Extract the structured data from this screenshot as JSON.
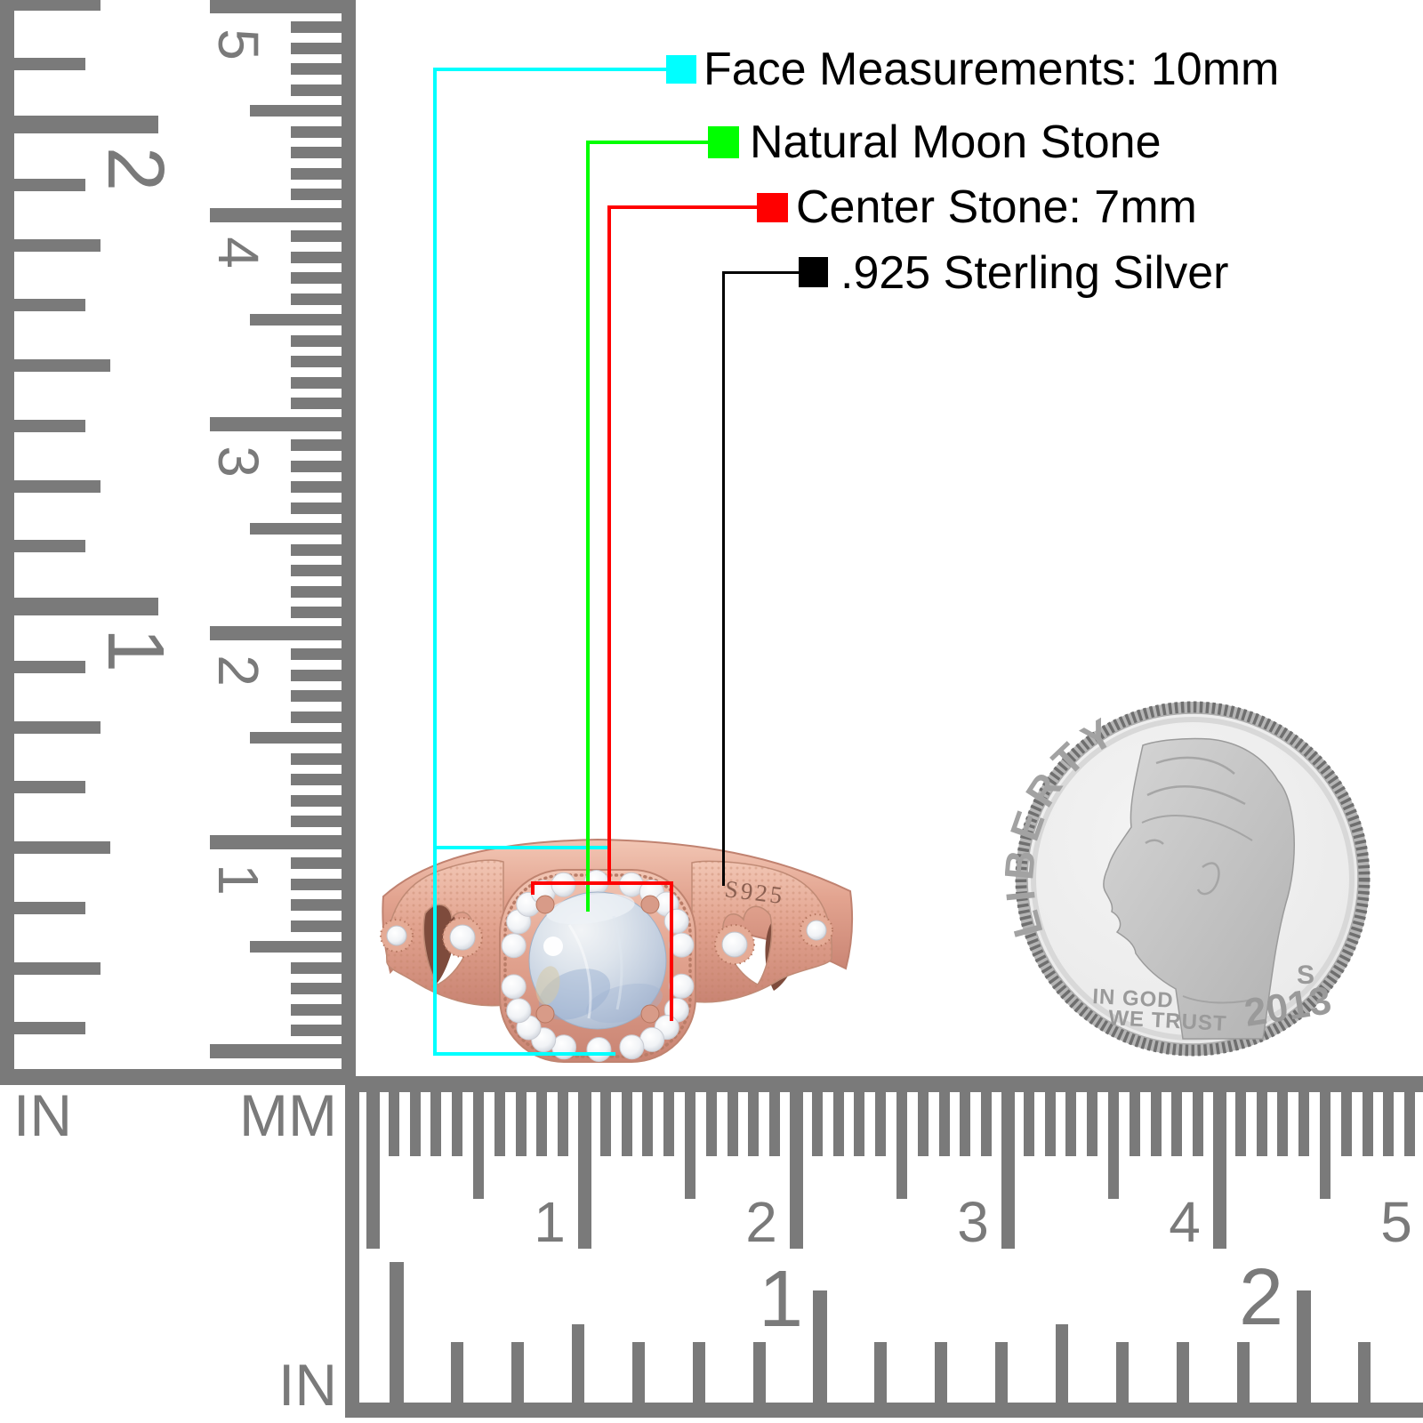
{
  "callouts": {
    "items": [
      {
        "id": "face",
        "color": "#00ffff",
        "label": "Face Measurements: 10mm"
      },
      {
        "id": "stone",
        "color": "#00ff00",
        "label": "Natural Moon Stone"
      },
      {
        "id": "center",
        "color": "#ff0000",
        "label": "Center Stone: 7mm"
      },
      {
        "id": "metal",
        "color": "#000000",
        "label": ".925 Sterling Silver"
      }
    ]
  },
  "ring": {
    "engraving": "S925"
  },
  "coin": {
    "legend": "LIBERTY",
    "motto_line1": "IN GOD",
    "motto_line2": "WE TRUST",
    "year": "2013",
    "mint_mark": "S"
  },
  "rulers": {
    "color": "#7a7a7a",
    "left_inch": {
      "unit_label": "IN",
      "labels": [
        "2",
        "1"
      ]
    },
    "left_mm": {
      "unit_label": "MM",
      "labels": [
        "5",
        "4",
        "3",
        "2",
        "1"
      ]
    },
    "bottom_mm": {
      "labels": [
        "1",
        "2",
        "3",
        "4",
        "5"
      ]
    },
    "bottom_inch": {
      "unit_label": "IN",
      "labels": [
        "1",
        "2"
      ]
    }
  }
}
